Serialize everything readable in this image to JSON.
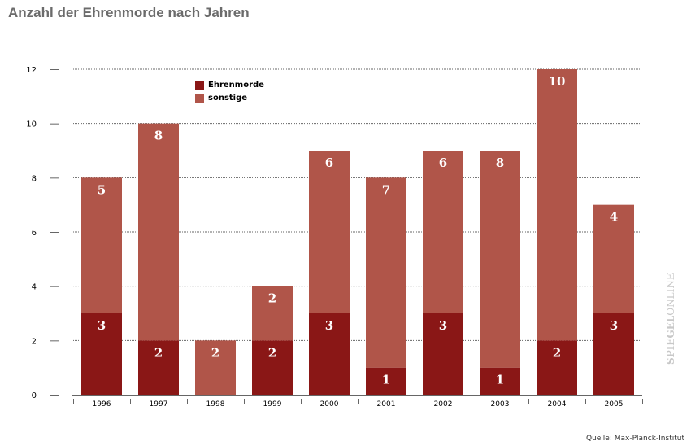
{
  "title": "Anzahl der Ehrenmorde nach Jahren",
  "source": "Quelle: Max-Planck-Institut",
  "brand": {
    "bold": "SPIEGEL",
    "light": "ONLINE"
  },
  "chart_data": {
    "type": "bar",
    "stacked": true,
    "title": "Anzahl der Ehrenmorde nach Jahren",
    "categories": [
      "1996",
      "1997",
      "1998",
      "1999",
      "2000",
      "2001",
      "2002",
      "2003",
      "2004",
      "2005"
    ],
    "series": [
      {
        "name": "Ehrenmorde",
        "color": "#8a1716",
        "values": [
          3,
          2,
          0,
          2,
          3,
          1,
          3,
          1,
          2,
          3
        ]
      },
      {
        "name": "sonstige",
        "color": "#b05549",
        "values": [
          5,
          8,
          2,
          2,
          6,
          7,
          6,
          8,
          10,
          4
        ]
      }
    ],
    "ylim": [
      0,
      12
    ],
    "yticks": [
      0,
      2,
      4,
      6,
      8,
      10,
      12
    ],
    "grid": true,
    "legend": "top-left"
  }
}
